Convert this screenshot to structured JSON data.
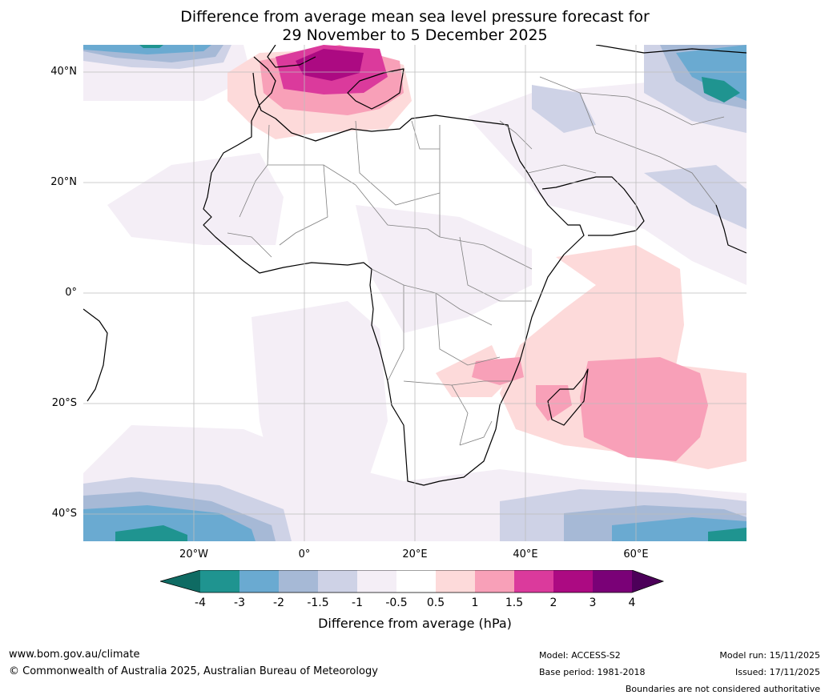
{
  "title": {
    "line1": "Difference from average mean sea level pressure forecast for",
    "line2": "29 November to 5 December 2025"
  },
  "axes": {
    "lat_labels": [
      "40°N",
      "20°N",
      "0°",
      "20°S",
      "40°S"
    ],
    "lon_labels": [
      "20°W",
      "0°",
      "20°E",
      "40°E",
      "60°E"
    ]
  },
  "colorbar": {
    "ticks": [
      "-4",
      "-3",
      "-2",
      "-1.5",
      "-1",
      "-0.5",
      "0.5",
      "1",
      "1.5",
      "2",
      "3",
      "4"
    ],
    "colors": [
      "#0f6b63",
      "#1f9490",
      "#6aaad1",
      "#a6b9d6",
      "#ced2e6",
      "#f4eef6",
      "#ffffff",
      "#fddada",
      "#f8a0b8",
      "#db3a9c",
      "#ac0a82",
      "#7a0177",
      "#4c0059"
    ],
    "label": "Difference from average (hPa)"
  },
  "footer": {
    "url": "www.bom.gov.au/climate",
    "copyright": "© Commonwealth of Australia 2025, Australian Bureau of Meteorology",
    "model": "Model: ACCESS-S2",
    "base_period": "Base period: 1981-2018",
    "model_run": "Model run: 15/11/2025",
    "issued": "Issued: 17/11/2025",
    "disclaimer": "Boundaries are not considered authoritative"
  }
}
